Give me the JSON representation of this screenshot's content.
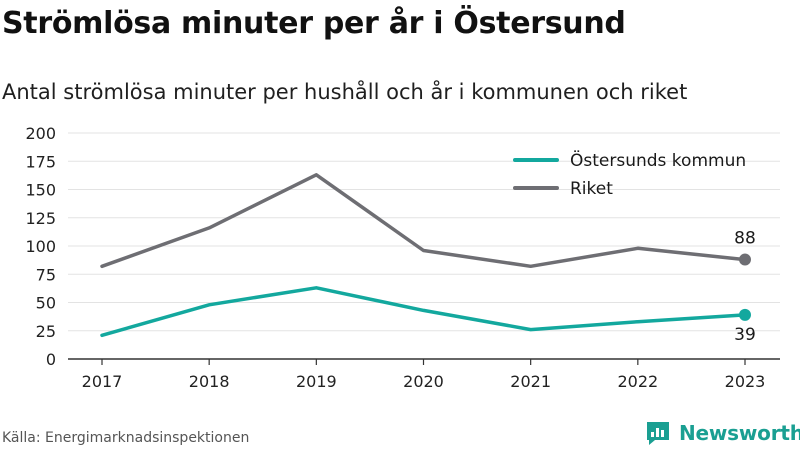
{
  "title": "Strömlösa minuter per år i Östersund",
  "subtitle": "Antal strömlösa minuter per hushåll och år i kommunen och riket",
  "source": "Källa: Energimarknadsinspektionen",
  "brand": "Newsworthy",
  "colors": {
    "ostersund": "#13a89e",
    "riket": "#6e6e73",
    "grid": "#e3e3e3",
    "axis": "#333333",
    "brand": "#1a9f92"
  },
  "icons": {
    "brand_logo": "bar-chart-speech-bubble-icon"
  },
  "chart_data": {
    "type": "line",
    "x": [
      "2017",
      "2018",
      "2019",
      "2020",
      "2021",
      "2022",
      "2023"
    ],
    "ylim": [
      0,
      200
    ],
    "yticks": [
      0,
      25,
      50,
      75,
      100,
      125,
      150,
      175,
      200
    ],
    "grid": true,
    "legend_position": "top-right",
    "series": [
      {
        "name": "Östersunds kommun",
        "values": [
          21,
          48,
          63,
          43,
          26,
          33,
          39
        ],
        "end_label": "39"
      },
      {
        "name": "Riket",
        "values": [
          82,
          116,
          163,
          96,
          82,
          98,
          88
        ],
        "end_label": "88"
      }
    ]
  }
}
